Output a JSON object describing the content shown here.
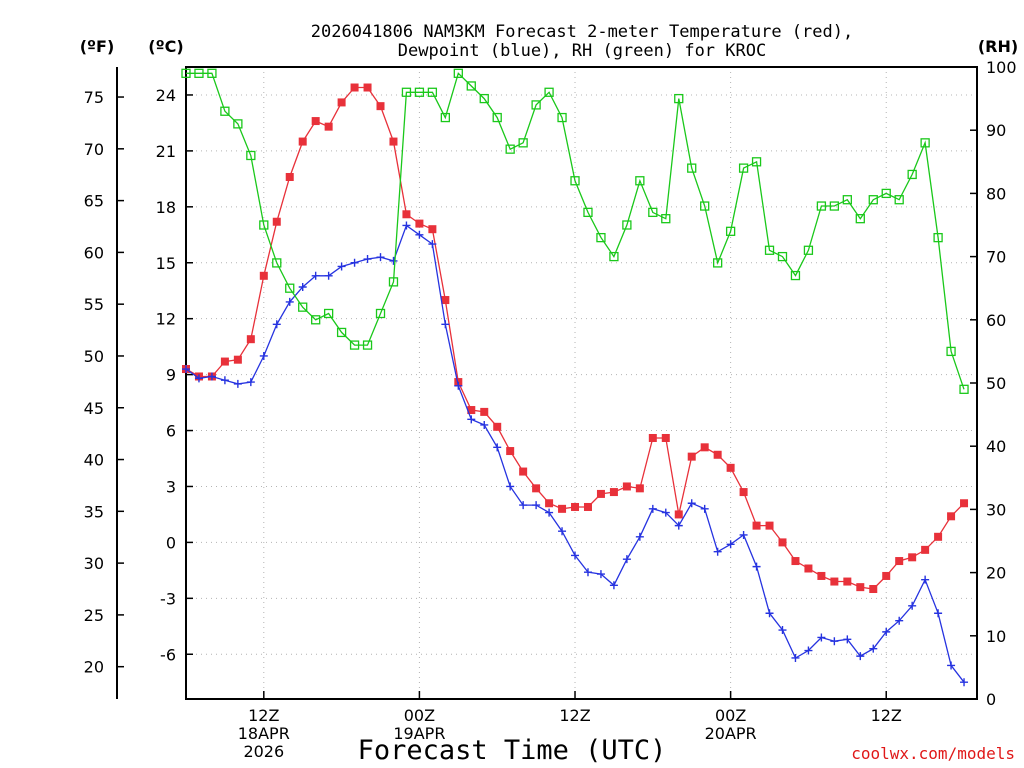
{
  "chart_data": {
    "type": "line",
    "title": [
      "2026041806 NAM3KM Forecast 2-meter Temperature (red),",
      "Dewpoint (blue), RH (green) for KROC"
    ],
    "xlabel": "Forecast Time (UTC)",
    "credit": "coolwx.com/models",
    "units": {
      "fahrenheit": "(ºF)",
      "celsius": "(ºC)",
      "rh": "(RH)"
    },
    "x_hours_range": [
      0,
      61
    ],
    "celsius_range": [
      -8.4,
      25.5
    ],
    "rh_range": [
      0,
      100
    ],
    "celsius_ticks": [
      24,
      21,
      18,
      15,
      12,
      9,
      6,
      3,
      0,
      -3,
      -6
    ],
    "fahrenheit_ticks": [
      75,
      70,
      65,
      60,
      55,
      50,
      45,
      40,
      35,
      30,
      25,
      20
    ],
    "rh_ticks": [
      100,
      90,
      80,
      70,
      60,
      50,
      40,
      30,
      20,
      10,
      0
    ],
    "x_ticks": [
      {
        "hour": 6,
        "lines": [
          "12Z",
          "18APR",
          "2026"
        ]
      },
      {
        "hour": 18,
        "lines": [
          "00Z",
          "19APR"
        ]
      },
      {
        "hour": 30,
        "lines": [
          "12Z"
        ]
      },
      {
        "hour": 42,
        "lines": [
          "00Z",
          "20APR"
        ]
      },
      {
        "hour": 54,
        "lines": [
          "12Z"
        ]
      }
    ],
    "series": [
      {
        "name": "2-meter Temperature",
        "unit": "C",
        "color": "#e8313a",
        "marker": "filled-square",
        "values": [
          9.3,
          8.9,
          8.9,
          9.7,
          9.8,
          10.9,
          14.3,
          17.2,
          19.6,
          21.5,
          22.6,
          22.3,
          23.6,
          24.4,
          24.4,
          23.4,
          21.5,
          17.6,
          17.1,
          16.8,
          13.0,
          8.6,
          7.1,
          7.0,
          6.2,
          4.9,
          3.8,
          2.9,
          2.1,
          1.8,
          1.9,
          1.9,
          2.6,
          2.7,
          3.0,
          2.9,
          5.6,
          5.6,
          1.5,
          4.6,
          5.1,
          4.7,
          4.0,
          2.7,
          0.9,
          0.9,
          0.0,
          -1.0,
          -1.4,
          -1.8,
          -2.1,
          -2.1,
          -2.4,
          -2.5,
          -1.8,
          -1.0,
          -0.8,
          -0.4,
          0.3,
          1.4,
          2.1
        ]
      },
      {
        "name": "Dewpoint",
        "unit": "C",
        "color": "#2633e0",
        "marker": "plus",
        "values": [
          9.3,
          8.8,
          8.9,
          8.7,
          8.5,
          8.6,
          10.0,
          11.7,
          12.9,
          13.7,
          14.3,
          14.3,
          14.8,
          15.0,
          15.2,
          15.3,
          15.1,
          17.0,
          16.5,
          16.0,
          11.7,
          8.4,
          6.6,
          6.3,
          5.1,
          3.0,
          2.0,
          2.0,
          1.6,
          0.6,
          -0.7,
          -1.6,
          -1.7,
          -2.3,
          -0.9,
          0.3,
          1.8,
          1.6,
          0.9,
          2.1,
          1.8,
          -0.5,
          -0.1,
          0.4,
          -1.3,
          -3.8,
          -4.7,
          -6.2,
          -5.8,
          -5.1,
          -5.3,
          -5.2,
          -6.1,
          -5.7,
          -4.8,
          -4.2,
          -3.4,
          -2.0,
          -3.8,
          -6.6,
          -7.5
        ]
      },
      {
        "name": "RH",
        "unit": "%",
        "color": "#1ac81a",
        "marker": "open-square",
        "values": [
          99,
          99,
          99,
          93,
          91,
          86,
          75,
          69,
          65,
          62,
          60,
          61,
          58,
          56,
          56,
          61,
          66,
          96,
          96,
          96,
          92,
          99,
          97,
          95,
          92,
          87,
          88,
          94,
          96,
          92,
          82,
          77,
          73,
          70,
          75,
          82,
          77,
          76,
          95,
          84,
          78,
          69,
          74,
          84,
          85,
          71,
          70,
          67,
          71,
          78,
          78,
          79,
          76,
          79,
          80,
          79,
          83,
          88,
          73,
          55,
          49
        ]
      }
    ]
  }
}
